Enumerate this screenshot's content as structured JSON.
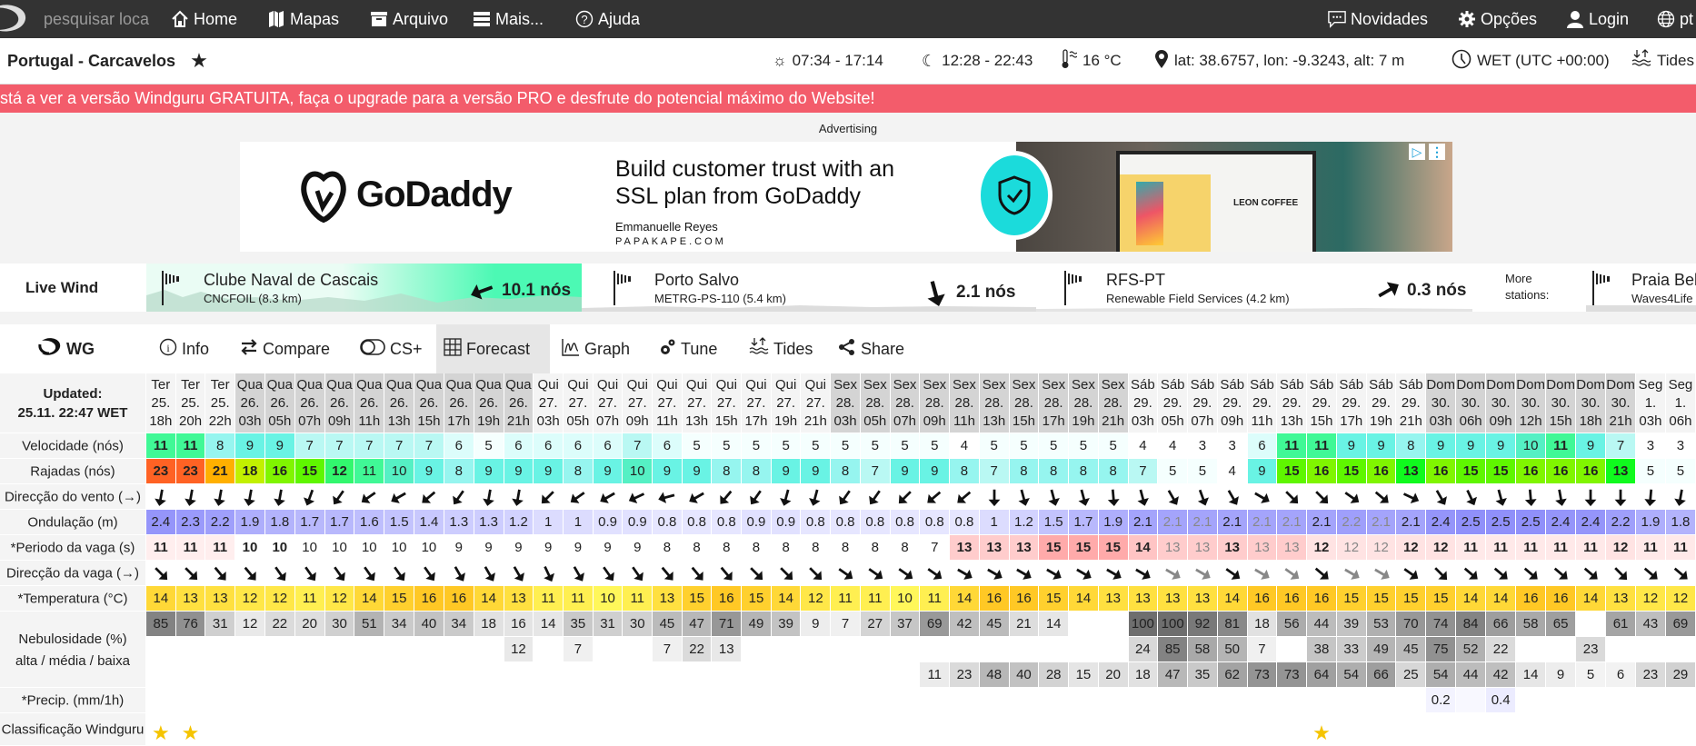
{
  "nav": {
    "search_placeholder": "pesquisar loca",
    "items": [
      {
        "label": "Home",
        "icon": "home-icon"
      },
      {
        "label": "Mapas",
        "icon": "map-icon"
      },
      {
        "label": "Arquivo",
        "icon": "archive-icon"
      },
      {
        "label": "Mais...",
        "icon": "menu-icon"
      },
      {
        "label": "Ajuda",
        "icon": "help-icon"
      }
    ],
    "right": [
      {
        "label": "Novidades",
        "icon": "chat-icon"
      },
      {
        "label": "Opções",
        "icon": "gear-icon"
      },
      {
        "label": "Login",
        "icon": "user-icon"
      },
      {
        "label": "pt",
        "icon": "globe-icon"
      }
    ]
  },
  "header": {
    "title": "Portugal - Carcavelos",
    "sun": "07:34 - 17:14",
    "moon": "12:28 - 22:43",
    "temp": "16 °C",
    "location": "lat: 38.6757, lon: -9.3243, alt: 7 m",
    "timezone": "WET (UTC +00:00)",
    "tides": "Tides"
  },
  "promo": "stá a ver a versão Windguru GRATUITA, faça o upgrade para a versão PRO e desfrute do potencial máximo do Website!",
  "ad": {
    "label": "Advertising",
    "brand": "GoDaddy",
    "headline1": "Build customer trust with an",
    "headline2": "SSL plan from GoDaddy",
    "person": "Emmanuelle Reyes",
    "site": "PAPAKAPE.COM",
    "image_text": "LEON COFFEE",
    "accent": "#1bdbdb"
  },
  "live": {
    "label": "Live Wind",
    "more": "More stations:",
    "stations": [
      {
        "name": "Clube Naval de Cascais",
        "sub": "CNCFOIL  (8.3 km)",
        "speed": "10.1 nós",
        "arrow_deg": 250
      },
      {
        "name": "Porto Salvo",
        "sub": "METRG-PS-110  (5.4 km)",
        "speed": "2.1 nós",
        "arrow_deg": 165
      },
      {
        "name": "RFS-PT",
        "sub": "Renewable Field Services  (4.2 km)",
        "speed": "0.3 nós",
        "arrow_deg": 60
      },
      {
        "name": "Praia Bel",
        "sub": "Waves4Life"
      }
    ]
  },
  "tabs": {
    "logo": "WG",
    "items": [
      {
        "label": "Info",
        "icon": "info-icon"
      },
      {
        "label": "Compare",
        "icon": "compare-icon"
      },
      {
        "label": "CS+",
        "icon": "toggle-icon"
      },
      {
        "label": "Forecast",
        "icon": "grid-icon",
        "active": true
      },
      {
        "label": "Graph",
        "icon": "graph-icon"
      },
      {
        "label": "Tune",
        "icon": "tune-icon"
      },
      {
        "label": "Tides",
        "icon": "tides-icon"
      },
      {
        "label": "Share",
        "icon": "share-icon"
      }
    ]
  },
  "forecast": {
    "updated_label": "Updated:",
    "updated": "25.11. 22:47 WET",
    "labels": {
      "speed": "Velocidade (nós)",
      "gusts": "Rajadas (nós)",
      "wind_dir": "Direcção do vento (→)",
      "swell": "Ondulação (m)",
      "period": "*Periodo da vaga (s)",
      "wave_dir": "Direcção da vaga (→)",
      "temp": "*Temperatura (°C)",
      "clouds1": "Nebulosidade (%)",
      "clouds2": "alta / média / baixa",
      "precip": "*Precip. (mm/1h)",
      "rating": "Classificação Windguru"
    },
    "days": [
      "Ter",
      "Ter",
      "Ter",
      "Qua",
      "Qua",
      "Qua",
      "Qua",
      "Qua",
      "Qua",
      "Qua",
      "Qua",
      "Qua",
      "Qua",
      "Qui",
      "Qui",
      "Qui",
      "Qui",
      "Qui",
      "Qui",
      "Qui",
      "Qui",
      "Qui",
      "Qui",
      "Sex",
      "Sex",
      "Sex",
      "Sex",
      "Sex",
      "Sex",
      "Sex",
      "Sex",
      "Sex",
      "Sex",
      "Sáb",
      "Sáb",
      "Sáb",
      "Sáb",
      "Sáb",
      "Sáb",
      "Sáb",
      "Sáb",
      "Sáb",
      "Sáb",
      "Dom",
      "Dom",
      "Dom",
      "Dom",
      "Dom",
      "Dom",
      "Dom",
      "Seg",
      "Seg"
    ],
    "dates": [
      "25.",
      "25.",
      "25.",
      "26.",
      "26.",
      "26.",
      "26.",
      "26.",
      "26.",
      "26.",
      "26.",
      "26.",
      "26.",
      "27.",
      "27.",
      "27.",
      "27.",
      "27.",
      "27.",
      "27.",
      "27.",
      "27.",
      "27.",
      "28.",
      "28.",
      "28.",
      "28.",
      "28.",
      "28.",
      "28.",
      "28.",
      "28.",
      "28.",
      "29.",
      "29.",
      "29.",
      "29.",
      "29.",
      "29.",
      "29.",
      "29.",
      "29.",
      "29.",
      "30.",
      "30.",
      "30.",
      "30.",
      "30.",
      "30.",
      "30.",
      "1.",
      "1."
    ],
    "hours": [
      "18h",
      "20h",
      "22h",
      "03h",
      "05h",
      "07h",
      "09h",
      "11h",
      "13h",
      "15h",
      "17h",
      "19h",
      "21h",
      "03h",
      "05h",
      "07h",
      "09h",
      "11h",
      "13h",
      "15h",
      "17h",
      "19h",
      "21h",
      "03h",
      "05h",
      "07h",
      "09h",
      "11h",
      "13h",
      "15h",
      "17h",
      "19h",
      "21h",
      "03h",
      "05h",
      "07h",
      "09h",
      "11h",
      "13h",
      "15h",
      "17h",
      "19h",
      "21h",
      "03h",
      "06h",
      "09h",
      "12h",
      "15h",
      "18h",
      "21h",
      "03h",
      "06h"
    ],
    "speed": [
      11,
      11,
      8,
      9,
      9,
      7,
      7,
      7,
      7,
      7,
      6,
      5,
      6,
      6,
      6,
      6,
      7,
      6,
      5,
      5,
      5,
      5,
      5,
      5,
      5,
      5,
      5,
      4,
      5,
      5,
      5,
      5,
      5,
      4,
      4,
      3,
      3,
      6,
      11,
      11,
      9,
      9,
      8,
      9,
      9,
      9,
      10,
      11,
      9,
      7,
      3,
      3
    ],
    "gusts": [
      23,
      23,
      21,
      18,
      16,
      15,
      12,
      11,
      10,
      9,
      8,
      9,
      9,
      9,
      8,
      9,
      10,
      9,
      9,
      8,
      8,
      9,
      9,
      8,
      7,
      9,
      9,
      8,
      7,
      8,
      8,
      8,
      8,
      7,
      5,
      5,
      4,
      9,
      15,
      16,
      15,
      16,
      13,
      16,
      15,
      15,
      16,
      16,
      16,
      13,
      5,
      5
    ],
    "wind_dir_deg": [
      190,
      190,
      190,
      190,
      190,
      200,
      215,
      235,
      240,
      230,
      215,
      190,
      190,
      225,
      235,
      240,
      245,
      255,
      240,
      220,
      215,
      195,
      195,
      215,
      215,
      225,
      230,
      230,
      180,
      165,
      165,
      165,
      175,
      165,
      150,
      160,
      150,
      120,
      135,
      135,
      125,
      130,
      115,
      150,
      155,
      165,
      175,
      170,
      180,
      180,
      185,
      190
    ],
    "swell": [
      2.4,
      2.3,
      2.2,
      1.9,
      1.8,
      1.7,
      1.7,
      1.6,
      1.5,
      1.4,
      1.3,
      1.3,
      1.2,
      1,
      1,
      0.9,
      0.9,
      0.8,
      0.8,
      0.8,
      0.9,
      0.9,
      0.8,
      0.8,
      0.8,
      0.8,
      0.8,
      0.8,
      1,
      1.2,
      1.5,
      1.7,
      1.9,
      2.1,
      2.1,
      2.1,
      2.1,
      2.1,
      2.1,
      2.1,
      2.2,
      2.1,
      2.1,
      2.4,
      2.5,
      2.5,
      2.5,
      2.4,
      2.4,
      2.2,
      1.9,
      1.8
    ],
    "period": [
      11,
      11,
      11,
      10,
      10,
      10,
      10,
      10,
      10,
      10,
      9,
      9,
      9,
      9,
      9,
      9,
      9,
      8,
      8,
      8,
      8,
      8,
      8,
      8,
      8,
      8,
      7,
      13,
      13,
      13,
      15,
      15,
      15,
      14,
      13,
      13,
      13,
      13,
      13,
      12,
      12,
      12,
      12,
      12,
      11,
      11,
      11,
      11,
      11,
      12,
      11,
      11
    ],
    "secondary": [
      false,
      false,
      false,
      false,
      false,
      false,
      false,
      false,
      false,
      false,
      false,
      false,
      false,
      false,
      false,
      false,
      false,
      false,
      false,
      false,
      false,
      false,
      false,
      false,
      false,
      false,
      false,
      false,
      false,
      false,
      false,
      false,
      false,
      false,
      true,
      true,
      false,
      true,
      true,
      false,
      true,
      true,
      false,
      false,
      false,
      false,
      false,
      false,
      false,
      false,
      false,
      false
    ],
    "wave_dir_deg": [
      135,
      135,
      140,
      140,
      145,
      145,
      145,
      145,
      145,
      145,
      150,
      150,
      150,
      155,
      150,
      145,
      145,
      140,
      140,
      140,
      135,
      135,
      135,
      125,
      125,
      125,
      125,
      120,
      120,
      120,
      120,
      120,
      120,
      120,
      120,
      120,
      125,
      120,
      125,
      130,
      120,
      120,
      125,
      135,
      130,
      130,
      130,
      130,
      130,
      135,
      130,
      130
    ],
    "temp": [
      14,
      13,
      13,
      12,
      12,
      11,
      12,
      14,
      15,
      16,
      16,
      14,
      13,
      11,
      11,
      10,
      11,
      13,
      15,
      16,
      15,
      14,
      12,
      11,
      11,
      10,
      11,
      14,
      16,
      16,
      15,
      14,
      13,
      13,
      13,
      13,
      14,
      16,
      16,
      16,
      15,
      15,
      15,
      15,
      14,
      14,
      16,
      16,
      14,
      13,
      12,
      12
    ],
    "cloud_high": [
      85,
      76,
      31,
      12,
      22,
      20,
      30,
      51,
      34,
      40,
      34,
      18,
      16,
      14,
      35,
      31,
      30,
      45,
      47,
      71,
      49,
      39,
      9,
      7,
      27,
      37,
      69,
      42,
      45,
      21,
      14,
      null,
      null,
      100,
      100,
      92,
      81,
      18,
      56,
      44,
      39,
      53,
      70,
      74,
      84,
      66,
      58,
      65,
      null,
      61,
      43,
      69
    ],
    "cloud_mid": [
      null,
      null,
      null,
      null,
      null,
      null,
      null,
      null,
      null,
      null,
      null,
      null,
      12,
      null,
      7,
      null,
      null,
      7,
      22,
      13,
      null,
      null,
      null,
      null,
      null,
      null,
      null,
      null,
      null,
      null,
      null,
      null,
      null,
      24,
      85,
      58,
      50,
      7,
      null,
      38,
      33,
      49,
      45,
      75,
      52,
      22,
      null,
      null,
      23,
      null,
      null,
      null
    ],
    "cloud_low": [
      null,
      null,
      null,
      null,
      null,
      null,
      null,
      null,
      null,
      null,
      null,
      null,
      null,
      null,
      null,
      null,
      null,
      null,
      null,
      null,
      null,
      null,
      null,
      null,
      null,
      null,
      11,
      23,
      48,
      40,
      28,
      15,
      20,
      18,
      47,
      35,
      62,
      73,
      73,
      64,
      54,
      66,
      25,
      54,
      44,
      42,
      14,
      9,
      5,
      6,
      23,
      29
    ],
    "precip": [
      null,
      null,
      null,
      null,
      null,
      null,
      null,
      null,
      null,
      null,
      null,
      null,
      null,
      null,
      null,
      null,
      null,
      null,
      null,
      null,
      null,
      null,
      null,
      null,
      null,
      null,
      null,
      null,
      null,
      null,
      null,
      null,
      null,
      null,
      null,
      null,
      null,
      null,
      null,
      null,
      null,
      null,
      null,
      0.2,
      null,
      0.4,
      null,
      null,
      null,
      null,
      null,
      null
    ],
    "rating_stars": [
      1,
      1,
      0,
      0,
      0,
      0,
      0,
      0,
      0,
      0,
      0,
      0,
      0,
      0,
      0,
      0,
      0,
      0,
      0,
      0,
      0,
      0,
      0,
      0,
      0,
      0,
      0,
      0,
      0,
      0,
      0,
      0,
      0,
      0,
      0,
      0,
      0,
      0,
      0,
      1,
      0,
      0,
      0,
      0,
      0,
      0,
      0,
      0,
      0,
      0,
      0,
      0
    ],
    "colors": {
      "star": "#f5c400",
      "promo": "#f35c6b",
      "live_active": "#4cf9b4"
    }
  }
}
